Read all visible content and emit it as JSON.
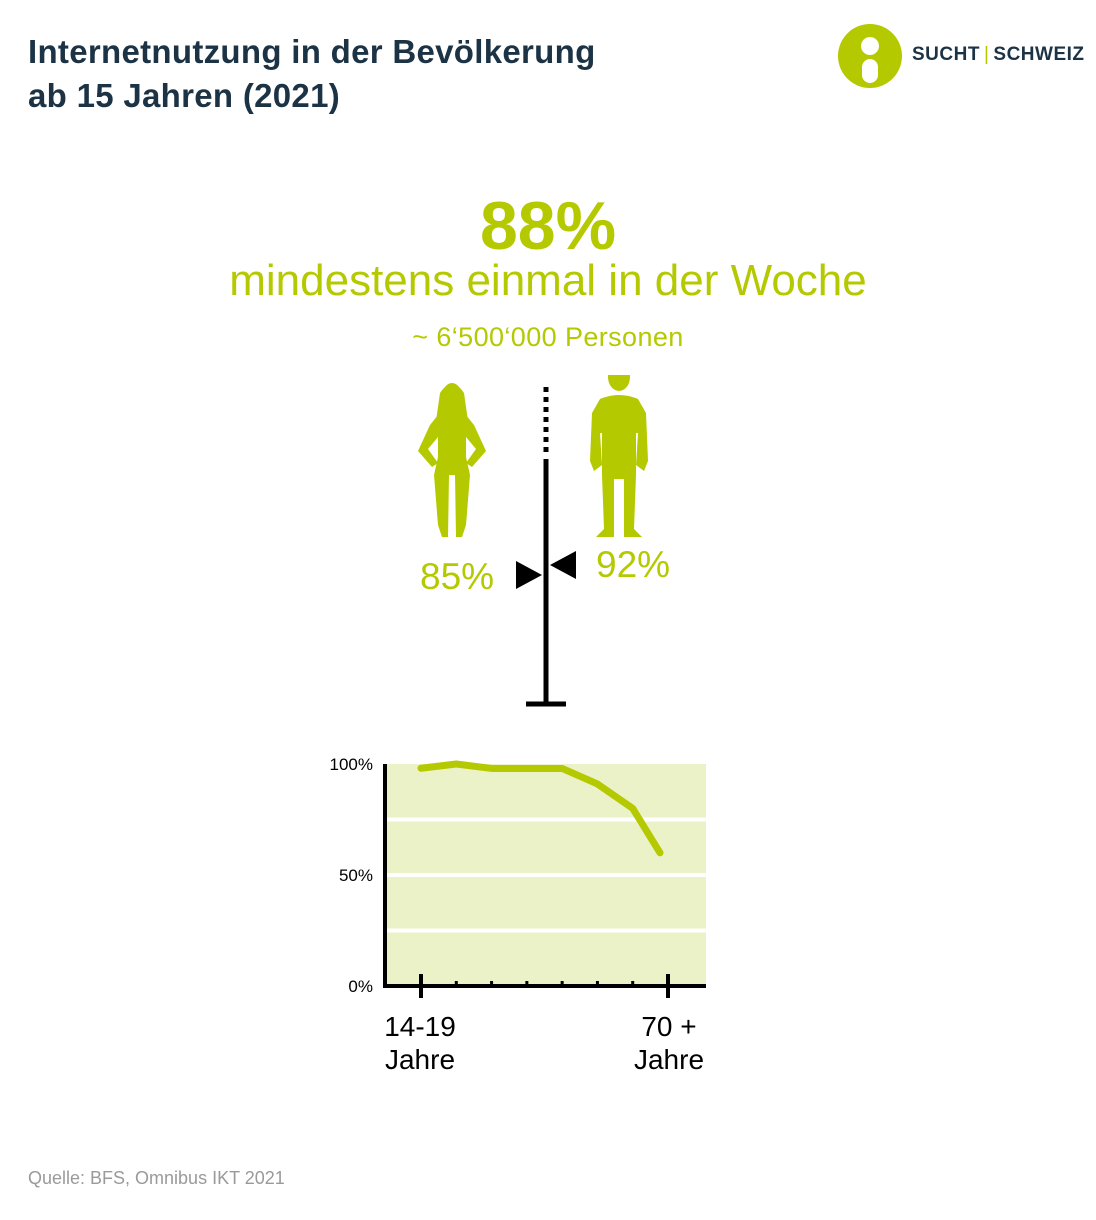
{
  "title": "Internetnutzung in der Bevölkerung\nab 15 Jahren (2021)",
  "logo": {
    "left": "SUCHT",
    "separator": "|",
    "right": "SCHWEIZ"
  },
  "headline": {
    "percent": "88%",
    "subtitle": "mindestens einmal in der Woche",
    "persons": "~ 6‘500‘000 Personen"
  },
  "gender": {
    "women": {
      "label": "85%",
      "value": 85,
      "icon": "woman-silhouette-icon"
    },
    "men": {
      "label": "92%",
      "value": 92,
      "icon": "man-silhouette-icon"
    }
  },
  "colors": {
    "accent": "#b5c900",
    "accent_light": "#ecf2c8",
    "title": "#1c3346",
    "axis": "#000000"
  },
  "chart_data": {
    "type": "line",
    "x_tick_labels": [
      "14-19\nJahre",
      "70 +\nJahre"
    ],
    "y_tick_labels": [
      "100%",
      "50%",
      "0%"
    ],
    "ylim": [
      0,
      100
    ],
    "grid": true,
    "series": [
      {
        "values": [
          99,
          100,
          98,
          98,
          98,
          91,
          80,
          60
        ]
      }
    ]
  },
  "source": "Quelle: BFS, Omnibus IKT 2021"
}
